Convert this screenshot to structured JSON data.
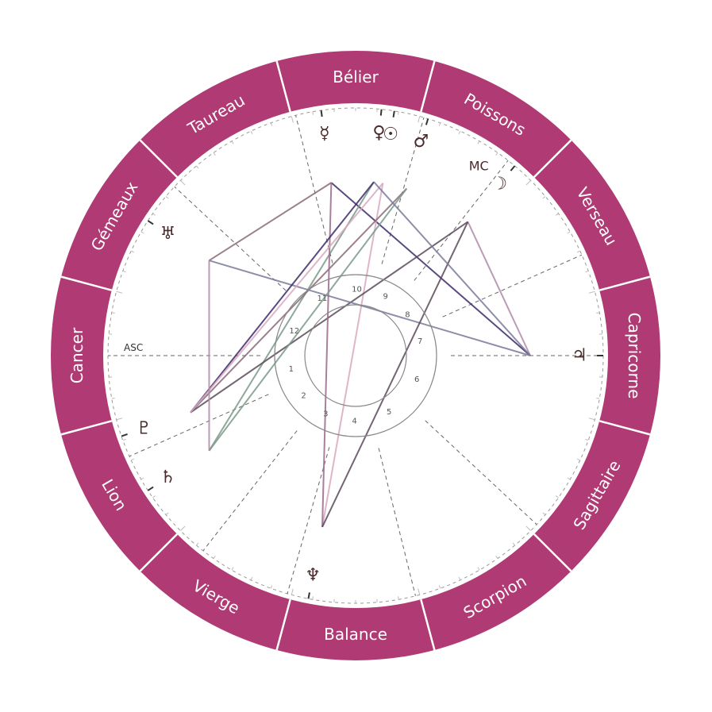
{
  "colors": {
    "ring": "#b03a74",
    "ring_divider": "#ffffff",
    "text_on_ring": "#ffffff",
    "glyph": "#4a2a2a",
    "cusp_line": "#666666",
    "inner_circle": "#888888"
  },
  "zodiac_signs": [
    {
      "name": "Bélier",
      "start_angle": 75
    },
    {
      "name": "Taureau",
      "start_angle": 105
    },
    {
      "name": "Gémeaux",
      "start_angle": 135
    },
    {
      "name": "Cancer",
      "start_angle": 165
    },
    {
      "name": "Lion",
      "start_angle": 195
    },
    {
      "name": "Vierge",
      "start_angle": 225
    },
    {
      "name": "Balance",
      "start_angle": 255
    },
    {
      "name": "Scorpion",
      "start_angle": 285
    },
    {
      "name": "Sagittaire",
      "start_angle": 315
    },
    {
      "name": "Capricorne",
      "start_angle": 345
    },
    {
      "name": "Verseau",
      "start_angle": 15
    },
    {
      "name": "Poissons",
      "start_angle": 45
    }
  ],
  "house_numbers": [
    "1",
    "2",
    "3",
    "4",
    "5",
    "6",
    "7",
    "8",
    "9",
    "10",
    "11",
    "12"
  ],
  "house_cusp_angles": [
    180,
    204,
    232,
    254,
    284,
    317,
    0,
    24,
    52,
    74,
    104,
    137
  ],
  "axis_labels": {
    "asc": "ASC",
    "mc": "MC"
  },
  "planets": [
    {
      "name": "mercury",
      "glyph": "☿",
      "angle": 98
    },
    {
      "name": "venus",
      "glyph": "♀",
      "angle": 84
    },
    {
      "name": "sun",
      "glyph": "☉",
      "angle": 81
    },
    {
      "name": "mars",
      "glyph": "♂",
      "angle": 73
    },
    {
      "name": "moon",
      "glyph": "☽",
      "angle": 50
    },
    {
      "name": "jupiter",
      "glyph": "♃",
      "angle": 0
    },
    {
      "name": "uranus",
      "glyph": "♅",
      "angle": 147
    },
    {
      "name": "pluto",
      "glyph": "♇",
      "angle": 199
    },
    {
      "name": "saturn",
      "glyph": "♄",
      "angle": 213
    },
    {
      "name": "neptune",
      "glyph": "♆",
      "angle": 259
    }
  ],
  "aspect_colors": [
    "#3d2a6b",
    "#7a9a8a",
    "#d9a8c0",
    "#8a6a7a",
    "#5a4a5a",
    "#b08aa8",
    "#7a7a9a",
    "#9a6a8a"
  ]
}
